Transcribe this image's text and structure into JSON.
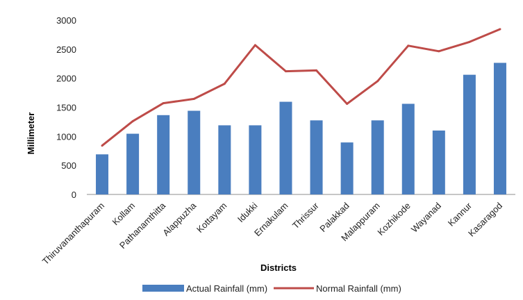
{
  "chart_data": {
    "type": "bar",
    "title": "",
    "xlabel": "Districts",
    "ylabel": "Millimeter",
    "ylim": [
      0,
      3000
    ],
    "yticks": [
      0,
      500,
      1000,
      1500,
      2000,
      2500,
      3000
    ],
    "grid": false,
    "legend_position": "bottom",
    "categories": [
      "Thiruvananthapuram",
      "Kollam",
      "Pathanamthitta",
      "Alappuzha",
      "Kottayam",
      "Idukki",
      "Ernakulam",
      "Thrissur",
      "Palakkad",
      "Malappuram",
      "Kozhikode",
      "Wayanad",
      "Kannur",
      "Kasaragod"
    ],
    "series": [
      {
        "name": "Actual Rainfall (mm)",
        "kind": "bar",
        "color": "#4a7ebf",
        "values": [
          690,
          1045,
          1365,
          1440,
          1190,
          1190,
          1595,
          1275,
          895,
          1275,
          1560,
          1100,
          2060,
          2265
        ]
      },
      {
        "name": "Normal Rainfall (mm)",
        "kind": "line",
        "color": "#be4b48",
        "values": [
          840,
          1260,
          1570,
          1645,
          1905,
          2570,
          2120,
          2135,
          1560,
          1950,
          2560,
          2465,
          2625,
          2845
        ]
      }
    ]
  }
}
